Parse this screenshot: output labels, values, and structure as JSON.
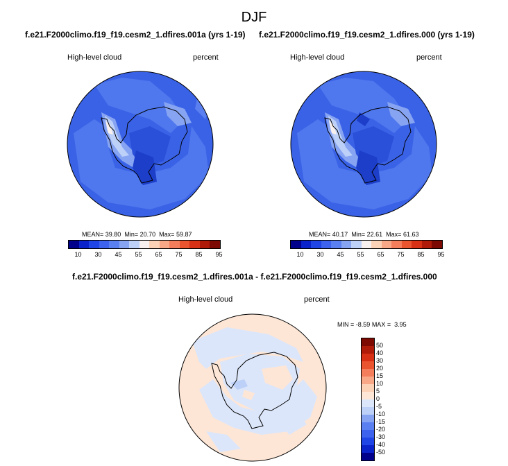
{
  "title": "DJF",
  "panels": [
    {
      "case_title": "f.e21.F2000climo.f19_f19.cesm2_1.dfires.001a (yrs 1-19)",
      "variable": "High-level cloud",
      "units": "percent",
      "stats": {
        "mean_label": "MEAN=",
        "mean": "39.80",
        "min_label": "Min=",
        "min": "20.70",
        "max_label": "Max=",
        "max": "59.87"
      }
    },
    {
      "case_title": "f.e21.F2000climo.f19_f19.cesm2_1.dfires.000 (yrs 1-19)",
      "variable": "High-level cloud",
      "units": "percent",
      "stats": {
        "mean_label": "MEAN=",
        "mean": "40.17",
        "min_label": "Min=",
        "min": "22.61",
        "max_label": "Max=",
        "max": "61.63"
      }
    }
  ],
  "abs_colorbar": {
    "colors": [
      "#00008b",
      "#0a22c9",
      "#1f45e6",
      "#3c62ee",
      "#5a7ff0",
      "#87a4f3",
      "#bcd0f8",
      "#f7f0ee",
      "#fcd2b6",
      "#f8a886",
      "#f47e5c",
      "#ea5530",
      "#d73015",
      "#b01a08",
      "#7d0a02"
    ],
    "tick_labels": [
      "10",
      "30",
      "45",
      "55",
      "65",
      "75",
      "85",
      "95"
    ]
  },
  "diff_panel": {
    "case_title": "f.e21.F2000climo.f19_f19.cesm2_1.dfires.001a - f.e21.F2000climo.f19_f19.cesm2_1.dfires.000",
    "variable": "High-level cloud",
    "units": "percent",
    "minmax": {
      "min_label": "MIN =",
      "min": "-8.59",
      "max_label": "MAX =",
      "max": "3.95"
    }
  },
  "diff_colorbar": {
    "colors": [
      "#7d0a02",
      "#b01a08",
      "#d73015",
      "#ea5530",
      "#f47e5c",
      "#f8a886",
      "#fcd2b6",
      "#fde6d6",
      "#dce6fa",
      "#bcd0f8",
      "#87a4f3",
      "#5a7ff0",
      "#3c62ee",
      "#1f45e6",
      "#0a22c9",
      "#00008b"
    ],
    "labels": [
      "50",
      "40",
      "30",
      "20",
      "15",
      "10",
      "5",
      "0",
      "-5",
      "-10",
      "-15",
      "-20",
      "-30",
      "-40",
      "-50"
    ]
  }
}
